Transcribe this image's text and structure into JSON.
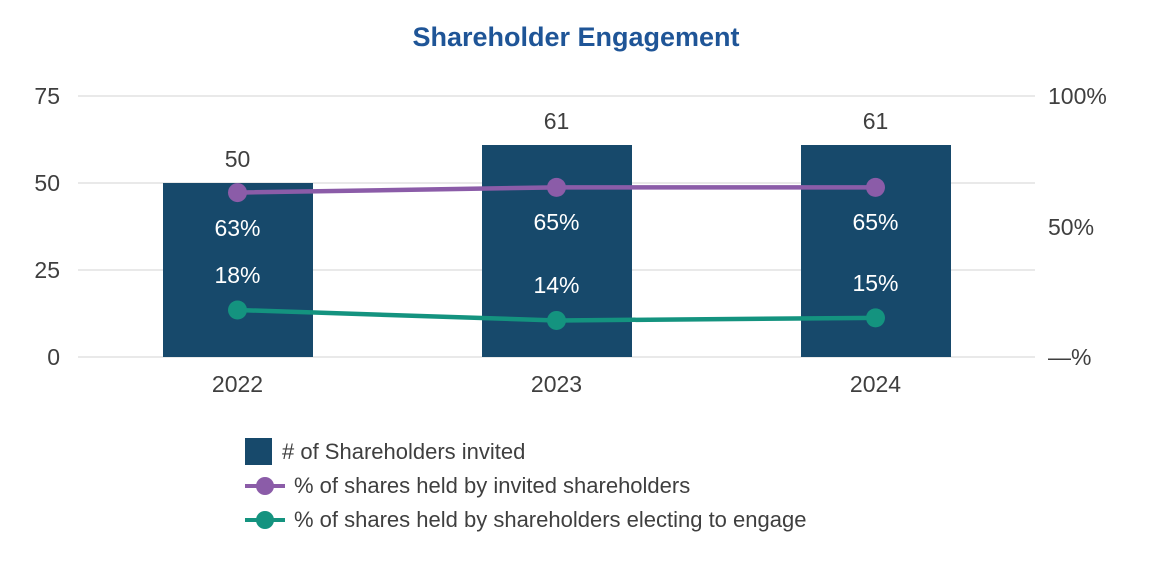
{
  "colors": {
    "bar": "#17496B",
    "purple": "#8B5CA8",
    "teal": "#14937F",
    "title": "#1F5597",
    "grid": "#E9E9E9",
    "text": "#3F3F3F",
    "label_on_bar": "#FFFFFF"
  },
  "chart_data": {
    "type": "combo-bar-line",
    "title": "Shareholder Engagement",
    "categories": [
      "2022",
      "2023",
      "2024"
    ],
    "series": [
      {
        "name": "# of Shareholders invited",
        "type": "bar",
        "axis": "left",
        "values": [
          50,
          61,
          61
        ],
        "value_labels": [
          "50",
          "61",
          "61"
        ],
        "color": "#17496B"
      },
      {
        "name": "% of shares held by invited shareholders",
        "type": "line",
        "axis": "right",
        "values": [
          63,
          65,
          65
        ],
        "value_labels": [
          "63%",
          "65%",
          "65%"
        ],
        "label_placement": "below",
        "color": "#8B5CA8"
      },
      {
        "name": "% of shares held by shareholders electing to engage",
        "type": "line",
        "axis": "right",
        "values": [
          18,
          14,
          15
        ],
        "value_labels": [
          "18%",
          "14%",
          "15%"
        ],
        "label_placement": "above",
        "color": "#14937F"
      }
    ],
    "left_axis": {
      "range": [
        0,
        75
      ],
      "ticks": [
        {
          "label": "0",
          "value": 0
        },
        {
          "label": "25",
          "value": 25
        },
        {
          "label": "50",
          "value": 50
        },
        {
          "label": "75",
          "value": 75
        }
      ]
    },
    "right_axis": {
      "range": [
        0,
        100
      ],
      "ticks": [
        {
          "label": "—%",
          "value": 0
        },
        {
          "label": "50%",
          "value": 50
        },
        {
          "label": "100%",
          "value": 100
        }
      ]
    },
    "grid": true,
    "legend_position": "bottom"
  }
}
